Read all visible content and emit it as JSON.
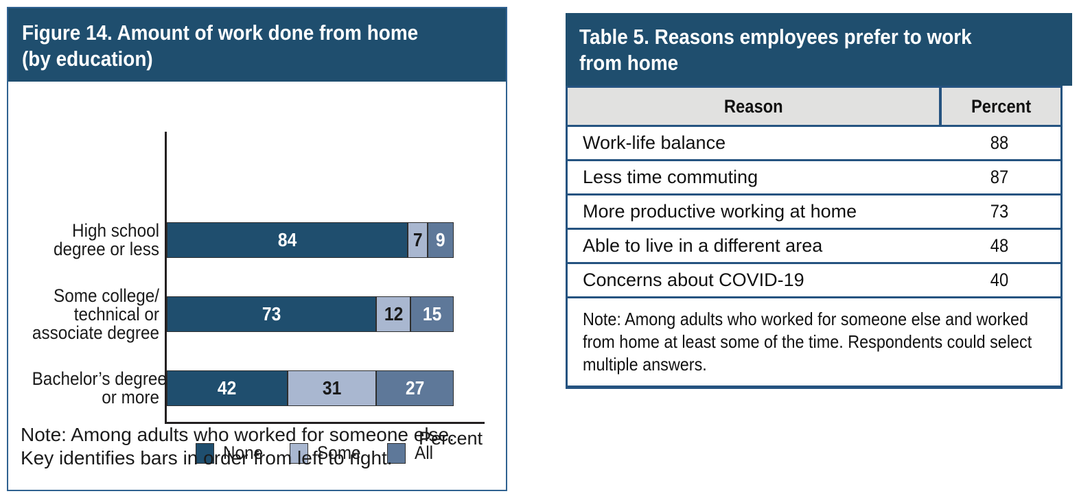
{
  "colors": {
    "panel_header_bg": "#1f4e6e",
    "panel_border": "#2f6190",
    "table_border_blue": "#255380",
    "table_header_row_bg": "#e1e1e0",
    "bar_none": "#1f4e6e",
    "bar_some": "#a9b7d0",
    "bar_all": "#5e7899",
    "axis_color": "#231f20"
  },
  "figure_panel": {
    "title_lines": [
      "Figure 14. Amount of work done from home",
      "(by education)"
    ],
    "note_lines": [
      "Note: Among adults who worked for someone else.",
      "Key identifies bars in order from left to right."
    ]
  },
  "table_panel": {
    "title_lines": [
      "Table 5. Reasons employees prefer to work",
      "from home"
    ],
    "note_lines": [
      "Note: Among adults who worked for someone else and worked",
      "from home at least some of the time. Respondents could select",
      "multiple answers."
    ]
  },
  "chart_data": [
    {
      "type": "bar",
      "orientation": "horizontal",
      "stacked": true,
      "title": "Figure 14. Amount of work done from home (by education)",
      "categories": [
        "High school degree or less",
        "Some college/technical or associate degree",
        "Bachelor's degree or more"
      ],
      "category_lines": [
        [
          "High school",
          "degree or less"
        ],
        [
          "Some college/",
          "technical or",
          "associate degree"
        ],
        [
          "Bachelor’s degree",
          "or more"
        ]
      ],
      "series": [
        {
          "name": "None",
          "values": [
            84,
            73,
            42
          ],
          "color": "#1f4e6e",
          "text_color": "#ffffff"
        },
        {
          "name": "Some",
          "values": [
            7,
            12,
            31
          ],
          "color": "#a9b7d0",
          "text_color": "#1a1a1a"
        },
        {
          "name": "All",
          "values": [
            9,
            15,
            27
          ],
          "color": "#5e7899",
          "text_color": "#ffffff"
        }
      ],
      "xlabel": "Percent",
      "xlim": [
        0,
        100
      ],
      "grid": false,
      "legend_position": "bottom",
      "note": "Note: Among adults who worked for someone else. Key identifies bars in order from left to right."
    },
    {
      "type": "table",
      "title": "Table 5. Reasons employees prefer to work from home",
      "columns": [
        "Reason",
        "Percent"
      ],
      "rows": [
        [
          "Work-life balance",
          88
        ],
        [
          "Less time commuting",
          87
        ],
        [
          "More productive working at home",
          73
        ],
        [
          "Able to live in a different area",
          48
        ],
        [
          "Concerns about COVID-19",
          40
        ]
      ],
      "note": "Note: Among adults who worked for someone else and worked from home at least some of the time. Respondents could select multiple answers."
    }
  ]
}
